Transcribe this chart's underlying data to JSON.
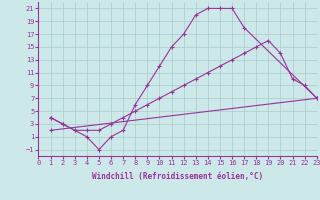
{
  "xlabel": "Windchill (Refroidissement éolien,°C)",
  "background_color": "#cce8e8",
  "grid_color": "#aacccc",
  "line_color": "#993399",
  "xlim": [
    0,
    23
  ],
  "ylim": [
    -2,
    22
  ],
  "xticks": [
    0,
    1,
    2,
    3,
    4,
    5,
    6,
    7,
    8,
    9,
    10,
    11,
    12,
    13,
    14,
    15,
    16,
    17,
    18,
    19,
    20,
    21,
    22,
    23
  ],
  "yticks": [
    -1,
    1,
    3,
    5,
    7,
    9,
    11,
    13,
    15,
    17,
    19,
    21
  ],
  "line1_x": [
    1,
    2,
    3,
    4,
    5,
    6,
    7,
    8,
    9,
    10,
    11,
    12,
    13,
    14,
    15,
    16,
    17,
    23
  ],
  "line1_y": [
    4,
    3,
    2,
    1,
    -1,
    1,
    2,
    6,
    9,
    12,
    15,
    17,
    20,
    21,
    21,
    21,
    18,
    7
  ],
  "line2_x": [
    1,
    2,
    3,
    4,
    5,
    6,
    7,
    8,
    9,
    10,
    11,
    12,
    13,
    14,
    15,
    16,
    17,
    18,
    19,
    20,
    21,
    22,
    23
  ],
  "line2_y": [
    4,
    3,
    2,
    2,
    2,
    3,
    4,
    5,
    6,
    7,
    8,
    9,
    10,
    11,
    12,
    13,
    14,
    15,
    16,
    14,
    10,
    9,
    7
  ],
  "line3_x": [
    1,
    23
  ],
  "line3_y": [
    2,
    7
  ],
  "tick_fontsize": 5,
  "xlabel_fontsize": 5.5
}
